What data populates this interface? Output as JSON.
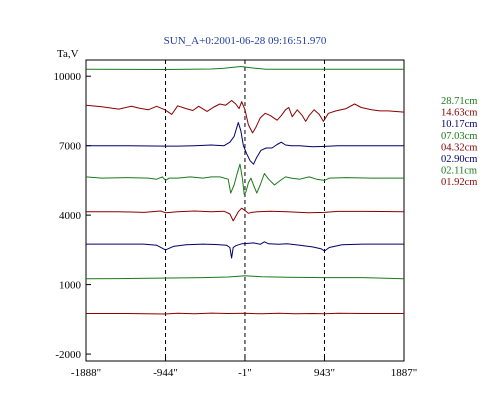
{
  "chart_data": {
    "type": "line",
    "title": "SUN_A+0:2001-06-28 09:16:51.970",
    "ylabel": "Ta,V",
    "xlim": [
      -1888,
      1887
    ],
    "ylim": [
      -2300,
      10700
    ],
    "x_ticks": [
      {
        "value": -1888,
        "label": "-1888\""
      },
      {
        "value": -944,
        "label": "-944\""
      },
      {
        "value": -1,
        "label": "-1\""
      },
      {
        "value": 943,
        "label": "943\""
      },
      {
        "value": 1887,
        "label": "1887\""
      }
    ],
    "y_ticks": [
      {
        "value": 10000,
        "label": "10000"
      },
      {
        "value": 7000,
        "label": "7000"
      },
      {
        "value": 4000,
        "label": "4000"
      },
      {
        "value": 1000,
        "label": "1000"
      },
      {
        "value": -2000,
        "label": "-2000"
      }
    ],
    "vertical_dashed_lines": [
      -944,
      -1,
      943
    ],
    "grid": false,
    "legend_position": "right",
    "series": [
      {
        "name": "28.71cm",
        "color": "#1a7a1a",
        "baseline": 10300,
        "points": [
          [
            -1888,
            10300
          ],
          [
            -944,
            10290
          ],
          [
            -400,
            10310
          ],
          [
            -250,
            10340
          ],
          [
            -50,
            10420
          ],
          [
            80,
            10360
          ],
          [
            250,
            10300
          ],
          [
            943,
            10300
          ],
          [
            1887,
            10300
          ]
        ]
      },
      {
        "name": "14.63cm",
        "color": "#8b0000",
        "baseline": 8700,
        "points": [
          [
            -1888,
            8750
          ],
          [
            -1700,
            8680
          ],
          [
            -1500,
            8580
          ],
          [
            -1350,
            8700
          ],
          [
            -1250,
            8620
          ],
          [
            -1150,
            8550
          ],
          [
            -1050,
            8700
          ],
          [
            -950,
            8550
          ],
          [
            -870,
            8350
          ],
          [
            -800,
            8720
          ],
          [
            -700,
            8600
          ],
          [
            -620,
            8520
          ],
          [
            -550,
            8700
          ],
          [
            -450,
            8480
          ],
          [
            -380,
            8650
          ],
          [
            -300,
            8800
          ],
          [
            -230,
            8750
          ],
          [
            -160,
            8950
          ],
          [
            -110,
            8800
          ],
          [
            -70,
            8600
          ],
          [
            -40,
            8900
          ],
          [
            0,
            8550
          ],
          [
            40,
            7900
          ],
          [
            90,
            7550
          ],
          [
            130,
            7800
          ],
          [
            180,
            8200
          ],
          [
            240,
            8400
          ],
          [
            300,
            8300
          ],
          [
            380,
            8100
          ],
          [
            430,
            8300
          ],
          [
            480,
            8550
          ],
          [
            520,
            8650
          ],
          [
            560,
            8250
          ],
          [
            620,
            8550
          ],
          [
            680,
            8300
          ],
          [
            720,
            8050
          ],
          [
            760,
            8300
          ],
          [
            820,
            8550
          ],
          [
            880,
            8350
          ],
          [
            930,
            8050
          ],
          [
            990,
            8400
          ],
          [
            1080,
            8500
          ],
          [
            1200,
            8600
          ],
          [
            1300,
            8800
          ],
          [
            1380,
            8650
          ],
          [
            1500,
            8550
          ],
          [
            1600,
            8500
          ],
          [
            1700,
            8500
          ],
          [
            1887,
            8450
          ]
        ]
      },
      {
        "name": "10.17cm",
        "color": "#00006b",
        "baseline": 7000,
        "points": [
          [
            -1888,
            7000
          ],
          [
            -1400,
            7000
          ],
          [
            -944,
            6980
          ],
          [
            -800,
            6980
          ],
          [
            -600,
            7000
          ],
          [
            -400,
            7030
          ],
          [
            -250,
            7000
          ],
          [
            -180,
            7150
          ],
          [
            -130,
            7400
          ],
          [
            -80,
            8000
          ],
          [
            -50,
            7650
          ],
          [
            -20,
            7000
          ],
          [
            20,
            6650
          ],
          [
            60,
            6350
          ],
          [
            100,
            6200
          ],
          [
            140,
            6500
          ],
          [
            190,
            6800
          ],
          [
            250,
            6900
          ],
          [
            320,
            6900
          ],
          [
            380,
            7050
          ],
          [
            430,
            7150
          ],
          [
            480,
            7030
          ],
          [
            550,
            7000
          ],
          [
            650,
            7000
          ],
          [
            800,
            6950
          ],
          [
            943,
            6970
          ],
          [
            1100,
            7000
          ],
          [
            1400,
            7000
          ],
          [
            1887,
            7000
          ]
        ]
      },
      {
        "name": "07.03cm",
        "color": "#1a7a1a",
        "baseline": 5600,
        "points": [
          [
            -1888,
            5650
          ],
          [
            -1700,
            5600
          ],
          [
            -1400,
            5620
          ],
          [
            -1150,
            5600
          ],
          [
            -1050,
            5550
          ],
          [
            -980,
            5650
          ],
          [
            -944,
            5500
          ],
          [
            -900,
            5600
          ],
          [
            -800,
            5600
          ],
          [
            -650,
            5650
          ],
          [
            -500,
            5600
          ],
          [
            -400,
            5650
          ],
          [
            -300,
            5650
          ],
          [
            -200,
            5550
          ],
          [
            -170,
            4950
          ],
          [
            -130,
            5300
          ],
          [
            -90,
            5850
          ],
          [
            -60,
            6200
          ],
          [
            -30,
            5550
          ],
          [
            -10,
            4900
          ],
          [
            10,
            5000
          ],
          [
            40,
            5400
          ],
          [
            70,
            5600
          ],
          [
            100,
            5300
          ],
          [
            140,
            4950
          ],
          [
            180,
            5300
          ],
          [
            230,
            5800
          ],
          [
            280,
            5550
          ],
          [
            350,
            5300
          ],
          [
            420,
            5500
          ],
          [
            480,
            5650
          ],
          [
            550,
            5600
          ],
          [
            650,
            5550
          ],
          [
            760,
            5650
          ],
          [
            850,
            5550
          ],
          [
            943,
            5500
          ],
          [
            1000,
            5600
          ],
          [
            1200,
            5620
          ],
          [
            1500,
            5600
          ],
          [
            1887,
            5600
          ]
        ]
      },
      {
        "name": "04.32cm",
        "color": "#8b0000",
        "baseline": 4150,
        "points": [
          [
            -1888,
            4150
          ],
          [
            -1500,
            4150
          ],
          [
            -1200,
            4120
          ],
          [
            -1000,
            4180
          ],
          [
            -944,
            4100
          ],
          [
            -800,
            4150
          ],
          [
            -600,
            4180
          ],
          [
            -400,
            4150
          ],
          [
            -250,
            4170
          ],
          [
            -180,
            4050
          ],
          [
            -140,
            3750
          ],
          [
            -110,
            3950
          ],
          [
            -80,
            4150
          ],
          [
            -40,
            4300
          ],
          [
            0,
            4200
          ],
          [
            40,
            4080
          ],
          [
            80,
            4120
          ],
          [
            150,
            4150
          ],
          [
            300,
            4170
          ],
          [
            500,
            4150
          ],
          [
            750,
            4100
          ],
          [
            943,
            4120
          ],
          [
            1100,
            4160
          ],
          [
            1400,
            4160
          ],
          [
            1887,
            4150
          ]
        ]
      },
      {
        "name": "02.90cm",
        "color": "#00006b",
        "baseline": 2750,
        "points": [
          [
            -1888,
            2750
          ],
          [
            -1500,
            2750
          ],
          [
            -1200,
            2750
          ],
          [
            -1050,
            2700
          ],
          [
            -944,
            2500
          ],
          [
            -850,
            2650
          ],
          [
            -700,
            2720
          ],
          [
            -500,
            2750
          ],
          [
            -350,
            2730
          ],
          [
            -220,
            2700
          ],
          [
            -180,
            2600
          ],
          [
            -160,
            2150
          ],
          [
            -140,
            2600
          ],
          [
            -110,
            2680
          ],
          [
            -40,
            2760
          ],
          [
            0,
            2770
          ],
          [
            100,
            2800
          ],
          [
            180,
            2740
          ],
          [
            230,
            2850
          ],
          [
            280,
            2760
          ],
          [
            400,
            2740
          ],
          [
            500,
            2760
          ],
          [
            650,
            2700
          ],
          [
            800,
            2630
          ],
          [
            900,
            2550
          ],
          [
            943,
            2450
          ],
          [
            1000,
            2600
          ],
          [
            1150,
            2720
          ],
          [
            1400,
            2750
          ],
          [
            1887,
            2750
          ]
        ]
      },
      {
        "name": "02.11cm",
        "color": "#1a7a1a",
        "baseline": 1250,
        "points": [
          [
            -1888,
            1250
          ],
          [
            -1500,
            1260
          ],
          [
            -1000,
            1280
          ],
          [
            -500,
            1300
          ],
          [
            -200,
            1330
          ],
          [
            0,
            1380
          ],
          [
            200,
            1340
          ],
          [
            500,
            1320
          ],
          [
            943,
            1300
          ],
          [
            1400,
            1300
          ],
          [
            1887,
            1250
          ]
        ]
      },
      {
        "name": "01.92cm",
        "color": "#8b0000",
        "baseline": -250,
        "points": [
          [
            -1888,
            -250
          ],
          [
            -1400,
            -250
          ],
          [
            -944,
            -270
          ],
          [
            -800,
            -240
          ],
          [
            -600,
            -260
          ],
          [
            -400,
            -230
          ],
          [
            -200,
            -250
          ],
          [
            0,
            -240
          ],
          [
            200,
            -260
          ],
          [
            400,
            -240
          ],
          [
            600,
            -260
          ],
          [
            800,
            -250
          ],
          [
            943,
            -260
          ],
          [
            1100,
            -240
          ],
          [
            1400,
            -250
          ],
          [
            1887,
            -250
          ]
        ]
      }
    ]
  }
}
